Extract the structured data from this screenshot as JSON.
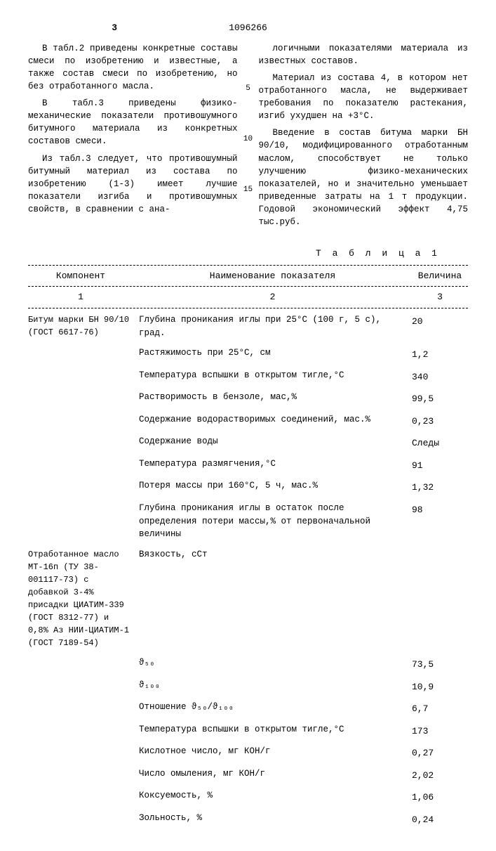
{
  "page": {
    "left_num": "3",
    "doc_num": "1096266"
  },
  "left_col": {
    "p1": "В табл.2 приведены конкретные составы смеси по изобретению и известные, а также состав смеси по изобретению, но без отработанного масла.",
    "p2": "В табл.3 приведены физико-механические показатели противошумного битумного материала из конкретных составов смеси.",
    "p3": "Из табл.3 следует, что противошумный битумный материал из состава по изобретению (1-3) имеет лучшие показатели изгиба и противошумных свойств, в сравнении с ана-"
  },
  "right_col": {
    "p1": "логичными показателями материала из известных составов.",
    "p2": "Материал из состава 4, в котором нет отработанного масла, не выдерживает требования по показателю растекания, изгиб ухудшен на +3°С.",
    "p3": "Введение в состав битума марки БН 90/10, модифицированного отработанным маслом, способствует не только улучшению физико-механических показателей, но и значительно уменьшает приведенные затраты на 1 т продукции. Годовой экономический эффект 4,75 тыс.руб."
  },
  "line_markers": {
    "l5": "5",
    "l10": "10",
    "l15": "15"
  },
  "table": {
    "title": "Т а б л и ц а  1",
    "header": {
      "c1": "Компонент",
      "c2": "Наименование показателя",
      "c3": "Величина"
    },
    "subheader": {
      "c1": "1",
      "c2": "2",
      "c3": "3"
    },
    "component1": "Битум марки БН 90/10 (ГОСТ 6617-76)",
    "component2": "Отработанное масло МТ-16п (ТУ 38-001117-73) с добавкой 3-4% присадки ЦИАТИМ-339 (ГОСТ 8312-77) и 0,8% Аз НИИ-ЦИАТИМ-1 (ГОСТ 7189-54)",
    "rows": [
      {
        "name": "Глубина проникания иглы при 25°С (100 г, 5 с), град.",
        "val": "20"
      },
      {
        "name": "Растяжимость при 25°С, см",
        "val": "1,2"
      },
      {
        "name": "Температура вспышки в открытом тигле,°С",
        "val": "340"
      },
      {
        "name": "Растворимость в бензоле, мас,%",
        "val": "99,5"
      },
      {
        "name": "Содержание водорастворимых соединений, мас.%",
        "val": "0,23"
      },
      {
        "name": "Содержание воды",
        "val": "Следы"
      },
      {
        "name": "Температура размягчения,°С",
        "val": "91"
      },
      {
        "name": "Потеря массы при 160°С, 5 ч, мас.%",
        "val": "1,32"
      },
      {
        "name": "Глубина проникания иглы в остаток после определения потери массы,% от первоначальной величины",
        "val": "98"
      },
      {
        "name": "Вязкость, сСт",
        "val": ""
      },
      {
        "name": "   ϑ₅₀",
        "val": "73,5"
      },
      {
        "name": "   ϑ₁₀₀",
        "val": "10,9"
      },
      {
        "name": "Отношение ϑ₅₀/ϑ₁₀₀",
        "val": "6,7"
      },
      {
        "name": "Температура вспышки в открытом тигле,°С",
        "val": "173"
      },
      {
        "name": "Кислотное число, мг КОН/г",
        "val": "0,27"
      },
      {
        "name": "Число омыления, мг КОН/г",
        "val": "2,02"
      },
      {
        "name": "Коксуемость, %",
        "val": "1,06"
      },
      {
        "name": "Зольность, %",
        "val": "0,24"
      }
    ]
  }
}
